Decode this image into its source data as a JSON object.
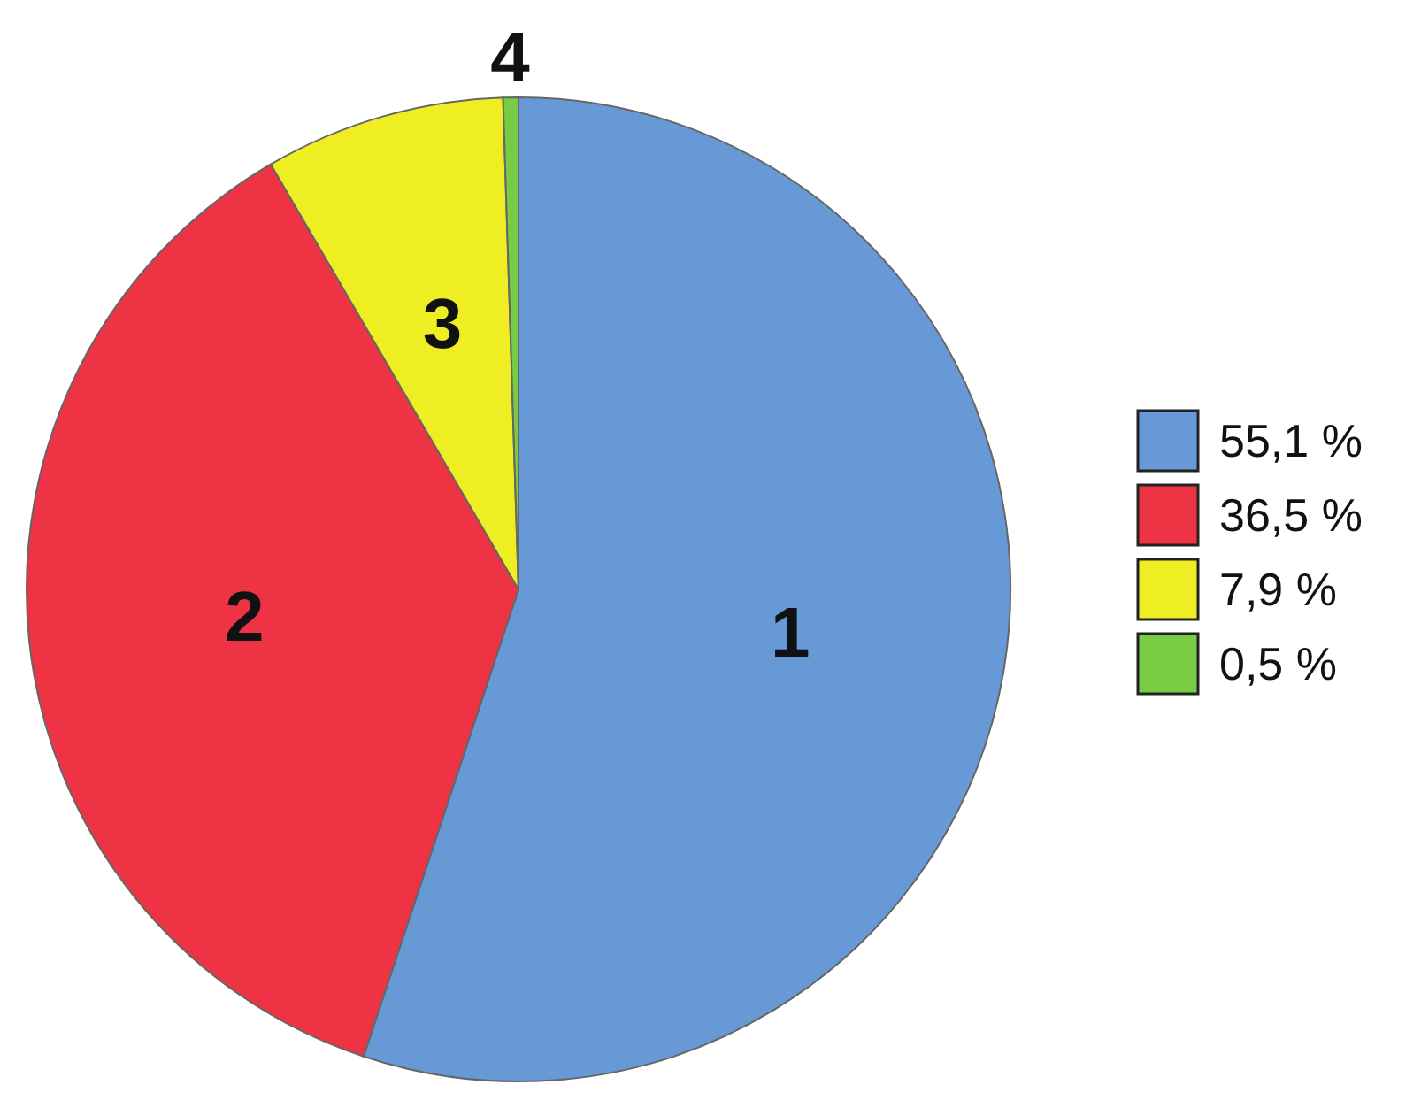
{
  "chart_data": {
    "type": "pie",
    "categories": [
      "55,1 %",
      "36,5 %",
      "7,9 %",
      "0,5 %"
    ],
    "values": [
      55.1,
      36.5,
      7.9,
      0.5
    ],
    "colors": [
      "#6699d6",
      "#ee3344",
      "#eeee22",
      "#77cc44"
    ],
    "annotations": [
      "1",
      "2",
      "3",
      "4"
    ],
    "legend": "right"
  }
}
